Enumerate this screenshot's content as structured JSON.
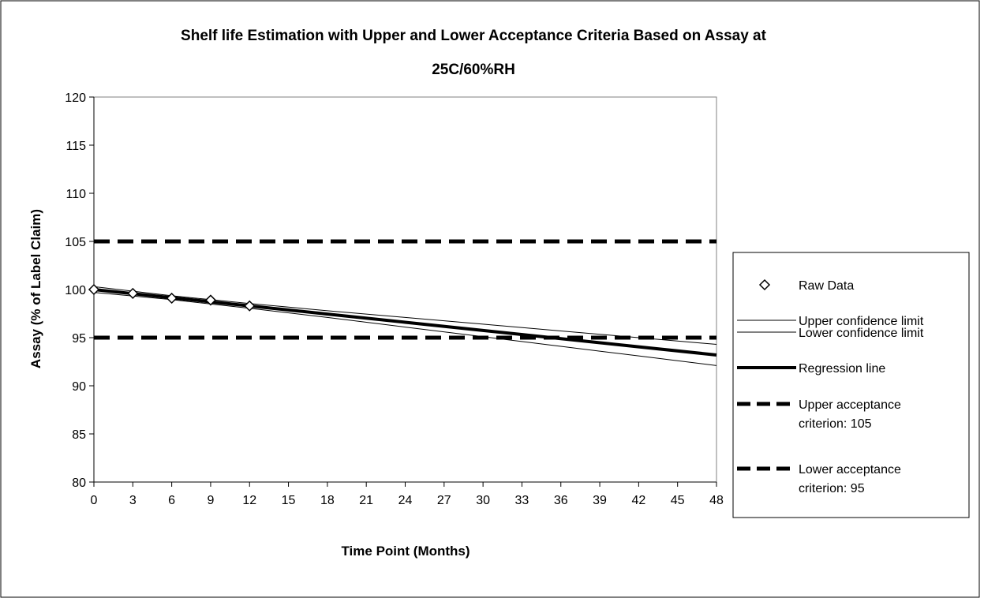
{
  "chart_data": {
    "type": "line",
    "title_lines": [
      "Shelf life Estimation with Upper and Lower Acceptance Criteria Based on Assay at",
      "25C/60%RH"
    ],
    "xlabel": "Time Point (Months)",
    "ylabel": "Assay (% of Label Claim)",
    "xlim": [
      0,
      48
    ],
    "ylim": [
      80,
      120
    ],
    "x_ticks": [
      0,
      3,
      6,
      9,
      12,
      15,
      18,
      21,
      24,
      27,
      30,
      33,
      36,
      39,
      42,
      45,
      48
    ],
    "y_ticks": [
      80,
      85,
      90,
      95,
      100,
      105,
      110,
      115,
      120
    ],
    "grid": false,
    "legend_position": "right",
    "raw_data": {
      "name": "Raw Data",
      "x": [
        0,
        3,
        6,
        9,
        12
      ],
      "y": [
        100.0,
        99.6,
        99.1,
        98.9,
        98.3
      ]
    },
    "regression": {
      "name": "Regression line",
      "x": [
        0,
        6,
        12,
        18,
        24,
        30,
        36,
        42,
        48
      ],
      "y": [
        100.0,
        99.15,
        98.3,
        97.45,
        96.6,
        95.75,
        94.9,
        94.05,
        93.2
      ]
    },
    "upper_confidence": {
      "name": "Upper confidence limit",
      "x": [
        0,
        6,
        12,
        18,
        24,
        30,
        36,
        42,
        48
      ],
      "y": [
        100.3,
        99.35,
        98.55,
        97.8,
        97.1,
        96.4,
        95.7,
        95.0,
        94.3
      ]
    },
    "lower_confidence": {
      "name": "Lower confidence limit",
      "x": [
        0,
        6,
        12,
        18,
        24,
        30,
        36,
        42,
        48
      ],
      "y": [
        99.7,
        98.95,
        98.05,
        97.1,
        96.1,
        95.1,
        94.1,
        93.1,
        92.1
      ]
    },
    "upper_acceptance": {
      "lines": [
        "Upper acceptance",
        "criterion: 105"
      ],
      "value": 105
    },
    "lower_acceptance": {
      "lines": [
        "Lower acceptance",
        "criterion: 95"
      ],
      "value": 95
    }
  }
}
